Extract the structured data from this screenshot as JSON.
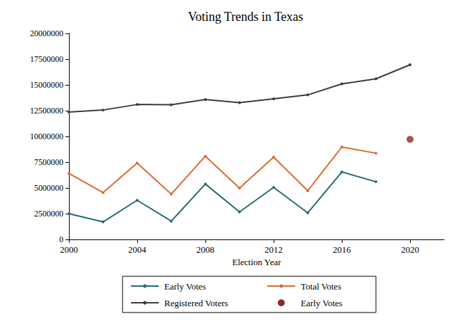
{
  "chart_data": {
    "type": "line",
    "title": "Voting Trends in Texas",
    "x_label": "Election Year",
    "x": [
      2000,
      2002,
      2004,
      2006,
      2008,
      2010,
      2012,
      2014,
      2016,
      2018,
      2020
    ],
    "series": [
      {
        "name": "Early Votes",
        "type": "line",
        "marker": "circle",
        "color": "#236b73",
        "values": [
          2500000,
          1700000,
          3800000,
          1780000,
          5380000,
          2670000,
          5050000,
          2580000,
          6550000,
          5600000,
          null
        ]
      },
      {
        "name": "Total Votes",
        "type": "line",
        "marker": "circle",
        "color": "#d9692e",
        "values": [
          6410000,
          4550000,
          7410000,
          4400000,
          8080000,
          4980000,
          7990000,
          4730000,
          8970000,
          8370000,
          null
        ]
      },
      {
        "name": "Registered Voters",
        "type": "line",
        "marker": "circle",
        "color": "#3b3b3b",
        "values": [
          12370000,
          12560000,
          13100000,
          13070000,
          13580000,
          13270000,
          13650000,
          14030000,
          15100000,
          15590000,
          16960000
        ]
      },
      {
        "name": "Early Votes",
        "type": "scatter",
        "marker": "circle",
        "color": "#8b2a2a",
        "values": [
          null,
          null,
          null,
          null,
          null,
          null,
          null,
          null,
          null,
          null,
          9720000
        ]
      }
    ],
    "xlim": [
      2000,
      2022
    ],
    "ylim": [
      0,
      20000000
    ],
    "xticks": [
      2000,
      2004,
      2008,
      2012,
      2016,
      2020
    ],
    "yticks": [
      0,
      2500000,
      5000000,
      7500000,
      10000000,
      12500000,
      15000000,
      17500000,
      20000000
    ],
    "grid": false,
    "legend": "bottom"
  }
}
